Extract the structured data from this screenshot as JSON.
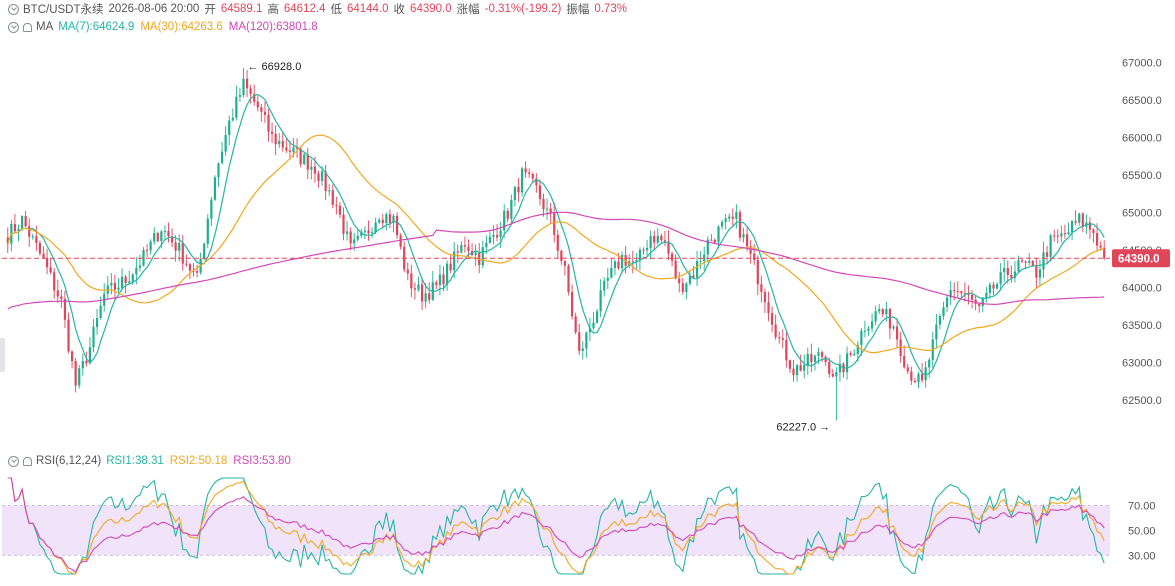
{
  "header": {
    "symbol": "BTC/USDT永续",
    "datetime": "2026-08-06 20:00",
    "open_label": "开",
    "open": "64589.1",
    "high_label": "高",
    "high": "64612.4",
    "low_label": "低",
    "low": "64144.0",
    "close_label": "收",
    "close": "64390.0",
    "change_label": "涨幅",
    "change": "-0.31%(-199.2)",
    "amp_label": "振幅",
    "amp": "0.73%"
  },
  "ma": {
    "label": "MA",
    "ma7": "MA(7):64624.9",
    "ma30": "MA(30):64263.6",
    "ma120": "MA(120):63801.8"
  },
  "rsi": {
    "label": "RSI(6,12,24)",
    "rsi1": "RSI1:38.31",
    "rsi2": "RSI2:50.18",
    "rsi3": "RSI3:53.80"
  },
  "colors": {
    "up": "#1fae8f",
    "down": "#e0465a",
    "ma7": "#26b5a4",
    "ma30": "#f0a820",
    "ma120": "#d248b8",
    "rsi_band": "#f1e4fa"
  },
  "chart_data": {
    "type": "candlestick",
    "interval": "hourly",
    "price_axis": {
      "ticks": [
        "67000.0",
        "66500.0",
        "66000.0",
        "65500.0",
        "65000.0",
        "64500.0",
        "64000.0",
        "63500.0",
        "63000.0",
        "62500.0"
      ],
      "ylim": [
        62100,
        67300
      ]
    },
    "current_price": {
      "value": 64390.0,
      "label": "64390.0"
    },
    "annotations": [
      {
        "text": "← 66928.0",
        "value": 66928.0,
        "type": "max"
      },
      {
        "text": "62227.0 →",
        "value": 62227.0,
        "type": "min"
      }
    ],
    "anchors": [
      [
        0,
        64700
      ],
      [
        4,
        64900
      ],
      [
        10,
        64350
      ],
      [
        15,
        63800
      ],
      [
        19,
        62700
      ],
      [
        23,
        63200
      ],
      [
        27,
        63900
      ],
      [
        33,
        64100
      ],
      [
        38,
        64400
      ],
      [
        43,
        64800
      ],
      [
        48,
        64500
      ],
      [
        53,
        64100
      ],
      [
        58,
        65500
      ],
      [
        62,
        66200
      ],
      [
        66,
        66700
      ],
      [
        70,
        66400
      ],
      [
        74,
        66000
      ],
      [
        80,
        65800
      ],
      [
        86,
        65600
      ],
      [
        92,
        65100
      ],
      [
        96,
        64500
      ],
      [
        100,
        64700
      ],
      [
        104,
        65000
      ],
      [
        108,
        64900
      ],
      [
        112,
        64100
      ],
      [
        116,
        63900
      ],
      [
        120,
        64000
      ],
      [
        124,
        64300
      ],
      [
        128,
        64600
      ],
      [
        132,
        64400
      ],
      [
        136,
        64700
      ],
      [
        140,
        65000
      ],
      [
        144,
        65500
      ],
      [
        148,
        65300
      ],
      [
        152,
        64900
      ],
      [
        156,
        64200
      ],
      [
        160,
        63100
      ],
      [
        164,
        63600
      ],
      [
        168,
        64100
      ],
      [
        172,
        64400
      ],
      [
        176,
        64300
      ],
      [
        180,
        64700
      ],
      [
        184,
        64600
      ],
      [
        188,
        64000
      ],
      [
        192,
        64200
      ],
      [
        196,
        64600
      ],
      [
        200,
        64800
      ],
      [
        204,
        64900
      ],
      [
        208,
        64400
      ],
      [
        212,
        63900
      ],
      [
        216,
        63300
      ],
      [
        220,
        62900
      ],
      [
        224,
        63000
      ],
      [
        228,
        63100
      ],
      [
        232,
        62800
      ],
      [
        236,
        63100
      ],
      [
        240,
        63500
      ],
      [
        244,
        63700
      ],
      [
        248,
        63500
      ],
      [
        252,
        62900
      ],
      [
        256,
        62700
      ],
      [
        260,
        63400
      ],
      [
        264,
        64000
      ],
      [
        268,
        63900
      ],
      [
        272,
        63700
      ],
      [
        276,
        64000
      ],
      [
        280,
        64200
      ],
      [
        284,
        64300
      ],
      [
        288,
        64200
      ],
      [
        292,
        64600
      ],
      [
        296,
        64700
      ],
      [
        300,
        64900
      ],
      [
        304,
        64750
      ],
      [
        307,
        64390
      ]
    ],
    "ma_periods": [
      7,
      30,
      120
    ],
    "rsi_axis": {
      "ticks": [
        "70.00",
        "50.00",
        "30.00"
      ],
      "ylim": [
        15,
        92
      ]
    },
    "rsi_periods": [
      6,
      12,
      24
    ]
  }
}
